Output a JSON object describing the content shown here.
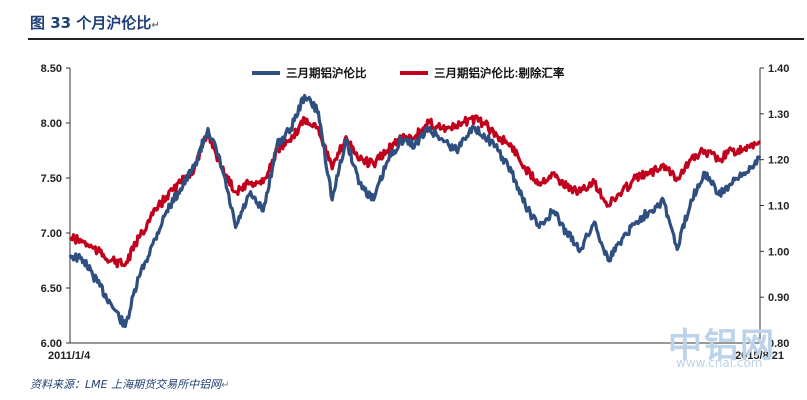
{
  "figure": {
    "title": "图 33 个月沪伦比",
    "source_text": "资料来源：LME 上海期货交易所中铝网"
  },
  "watermark": {
    "name": "中铝网",
    "url": "www.cnal.com"
  },
  "chart_data": {
    "type": "line",
    "title": "",
    "x_start_label": "2011/1/4",
    "x_end_label": "2015/8/21",
    "left_axis": {
      "ylim": [
        6.0,
        8.5
      ],
      "ticks": [
        "6.00",
        "6.50",
        "7.00",
        "7.50",
        "8.00",
        "8.50"
      ]
    },
    "right_axis": {
      "ylim": [
        0.8,
        1.4
      ],
      "ticks": [
        "0.80",
        "0.90",
        "1.00",
        "1.10",
        "1.20",
        "1.30",
        "1.40"
      ]
    },
    "grid": false,
    "legend_position": "top",
    "series": [
      {
        "name": "三月期铝沪伦比",
        "axis": "left",
        "color": "#2e4f7f",
        "x_index": [
          0,
          0.02,
          0.04,
          0.06,
          0.08,
          0.1,
          0.12,
          0.14,
          0.16,
          0.18,
          0.2,
          0.22,
          0.24,
          0.26,
          0.28,
          0.3,
          0.32,
          0.34,
          0.36,
          0.38,
          0.4,
          0.42,
          0.44,
          0.46,
          0.48,
          0.5,
          0.52,
          0.54,
          0.56,
          0.58,
          0.6,
          0.62,
          0.64,
          0.66,
          0.68,
          0.7,
          0.72,
          0.74,
          0.76,
          0.78,
          0.8,
          0.82,
          0.84,
          0.86,
          0.88,
          0.9,
          0.92,
          0.94,
          0.96,
          0.98,
          1.0
        ],
        "values": [
          6.8,
          6.75,
          6.55,
          6.35,
          6.15,
          6.6,
          6.9,
          7.2,
          7.4,
          7.6,
          7.95,
          7.6,
          7.05,
          7.35,
          7.2,
          7.8,
          7.95,
          8.25,
          8.1,
          7.3,
          7.85,
          7.45,
          7.3,
          7.65,
          7.85,
          7.8,
          7.95,
          7.85,
          7.75,
          7.95,
          7.9,
          7.75,
          7.55,
          7.25,
          7.05,
          7.2,
          7.0,
          6.85,
          7.1,
          6.75,
          6.95,
          7.1,
          7.2,
          7.3,
          6.85,
          7.3,
          7.55,
          7.35,
          7.45,
          7.55,
          7.7
        ]
      },
      {
        "name": "三月期铝沪伦比:剔除汇率",
        "axis": "right",
        "color": "#c0001d",
        "x_index": [
          0,
          0.02,
          0.04,
          0.06,
          0.08,
          0.1,
          0.12,
          0.14,
          0.16,
          0.18,
          0.2,
          0.22,
          0.24,
          0.26,
          0.28,
          0.3,
          0.32,
          0.34,
          0.36,
          0.38,
          0.4,
          0.42,
          0.44,
          0.46,
          0.48,
          0.5,
          0.52,
          0.54,
          0.56,
          0.58,
          0.6,
          0.62,
          0.64,
          0.66,
          0.68,
          0.7,
          0.72,
          0.74,
          0.76,
          0.78,
          0.8,
          0.82,
          0.84,
          0.86,
          0.88,
          0.9,
          0.92,
          0.94,
          0.96,
          0.98,
          1.0
        ],
        "values": [
          1.03,
          1.02,
          1.0,
          0.98,
          0.97,
          1.03,
          1.08,
          1.12,
          1.15,
          1.18,
          1.26,
          1.18,
          1.13,
          1.15,
          1.15,
          1.22,
          1.24,
          1.29,
          1.27,
          1.18,
          1.25,
          1.2,
          1.19,
          1.22,
          1.25,
          1.25,
          1.28,
          1.27,
          1.27,
          1.29,
          1.28,
          1.25,
          1.23,
          1.18,
          1.15,
          1.17,
          1.14,
          1.13,
          1.15,
          1.1,
          1.13,
          1.16,
          1.17,
          1.19,
          1.16,
          1.2,
          1.22,
          1.2,
          1.22,
          1.22,
          1.24
        ]
      }
    ]
  }
}
